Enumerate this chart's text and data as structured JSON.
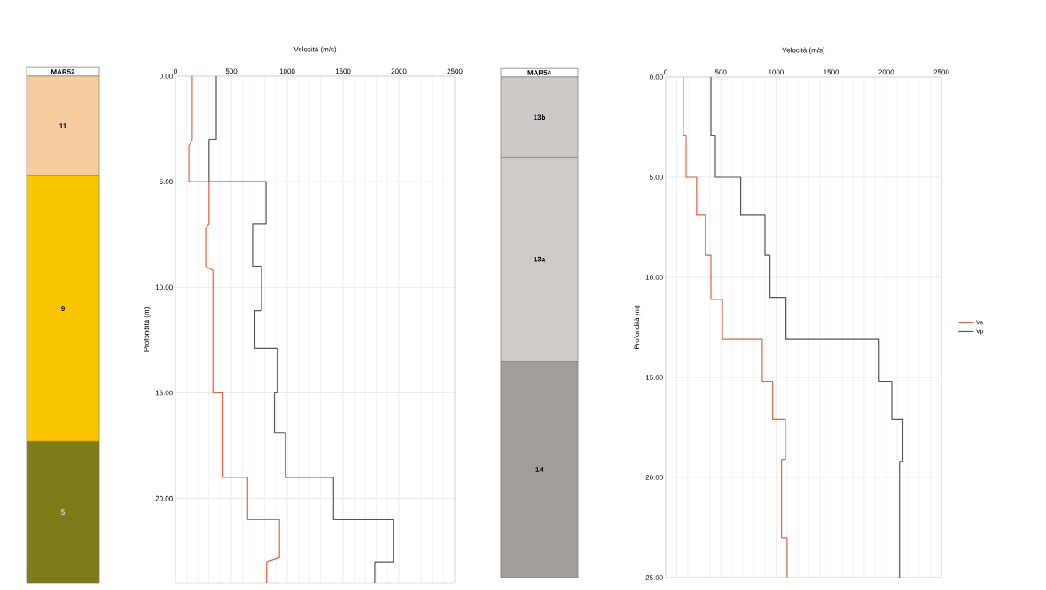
{
  "chart_data": [
    {
      "type": "bar",
      "stacked": true,
      "categories": [
        "MAR52"
      ],
      "ylim": [
        24,
        0
      ],
      "tick_labels": "x",
      "series": [
        {
          "color": "#f6cda0",
          "values": [
            4.7
          ]
        },
        {
          "color": "#f7c600",
          "values": [
            12.6
          ]
        },
        {
          "color": "#7f7b1a",
          "values": [
            6.7
          ]
        }
      ],
      "annotations": [
        "11",
        "9",
        "5"
      ]
    },
    {
      "type": "line",
      "xlabel": "Velocità (m/s)",
      "ylabel": "Profondità (m)",
      "xlim": [
        0,
        2500
      ],
      "ylim": [
        24,
        0
      ],
      "xticks": [
        0,
        500,
        1000,
        1500,
        2000,
        2500
      ],
      "yticks": [
        {
          "value": 0,
          "label": "0.00"
        },
        {
          "value": 5,
          "label": "5.00"
        },
        {
          "value": 10,
          "label": "10.00"
        },
        {
          "value": 15,
          "label": "15.00"
        },
        {
          "value": 20,
          "label": "20.00"
        }
      ],
      "grid": true,
      "series": [
        {
          "color": "#e8603c",
          "x": [
            150,
            150,
            120,
            120,
            300,
            300,
            270,
            270,
            335,
            335,
            425,
            425,
            645,
            645,
            930,
            930,
            815,
            815
          ],
          "values": [
            0,
            3.0,
            3.3,
            5.0,
            5.0,
            7.0,
            7.2,
            9.0,
            9.2,
            15.0,
            15.0,
            19.0,
            19.0,
            21.0,
            21.0,
            22.8,
            23.0,
            24
          ]
        },
        {
          "color": "#555555",
          "x": [
            365,
            365,
            300,
            300,
            810,
            810,
            690,
            690,
            770,
            770,
            710,
            710,
            915,
            915,
            885,
            885,
            985,
            985,
            1415,
            1415,
            1950,
            1950,
            1785,
            1785
          ],
          "values": [
            0,
            3.0,
            3.0,
            5.0,
            5.0,
            7.0,
            7.0,
            9.0,
            9.0,
            11.1,
            11.1,
            12.9,
            12.9,
            15.0,
            15.0,
            16.9,
            16.9,
            19.0,
            19.0,
            21.0,
            21.0,
            23.0,
            23.0,
            24
          ]
        }
      ]
    },
    {
      "type": "bar",
      "stacked": true,
      "categories": [
        "MAR54"
      ],
      "ylim": [
        25,
        0
      ],
      "tick_labels": "x",
      "series": [
        {
          "color": "#cdc9c6",
          "values": [
            4.0
          ]
        },
        {
          "color": "#cfcbc8",
          "values": [
            10.2
          ]
        },
        {
          "color": "#a19d99",
          "values": [
            10.8
          ]
        }
      ],
      "annotations": [
        "13b",
        "13a",
        "14"
      ]
    },
    {
      "type": "line",
      "xlabel": "Velocità (m/s)",
      "ylabel": "Profondità (m)",
      "xlim": [
        0,
        2500
      ],
      "ylim": [
        25,
        0
      ],
      "xticks": [
        0,
        500,
        1000,
        1500,
        2000,
        2500
      ],
      "yticks": [
        {
          "value": 0,
          "label": "0.00"
        },
        {
          "value": 5,
          "label": "5.00"
        },
        {
          "value": 10,
          "label": "10.00"
        },
        {
          "value": 15,
          "label": "15.00"
        },
        {
          "value": 20,
          "label": "20.00"
        },
        {
          "value": 25,
          "label": "25.00"
        }
      ],
      "grid": true,
      "legend": "right",
      "series": [
        {
          "name": "Vs",
          "color": "#e8603c",
          "x": [
            160,
            160,
            185,
            185,
            280,
            280,
            360,
            360,
            410,
            410,
            515,
            515,
            875,
            875,
            970,
            970,
            1085,
            1085,
            1050,
            1050,
            1100,
            1100
          ],
          "values": [
            0,
            2.9,
            2.9,
            5.0,
            5.0,
            6.9,
            6.9,
            8.9,
            8.9,
            11.1,
            11.1,
            13.1,
            13.1,
            15.2,
            15.2,
            17.1,
            17.1,
            19.1,
            19.1,
            23.0,
            23.0,
            25
          ]
        },
        {
          "name": "Vp",
          "color": "#555555",
          "x": [
            410,
            410,
            450,
            450,
            680,
            680,
            900,
            900,
            945,
            945,
            1090,
            1090,
            1935,
            1935,
            2050,
            2050,
            2150,
            2150,
            2120,
            2120
          ],
          "values": [
            0,
            2.9,
            2.9,
            5.0,
            5.0,
            6.9,
            6.9,
            8.9,
            8.9,
            11.0,
            11.0,
            13.1,
            13.1,
            15.2,
            15.2,
            17.1,
            17.1,
            19.2,
            19.2,
            25
          ]
        }
      ]
    }
  ]
}
